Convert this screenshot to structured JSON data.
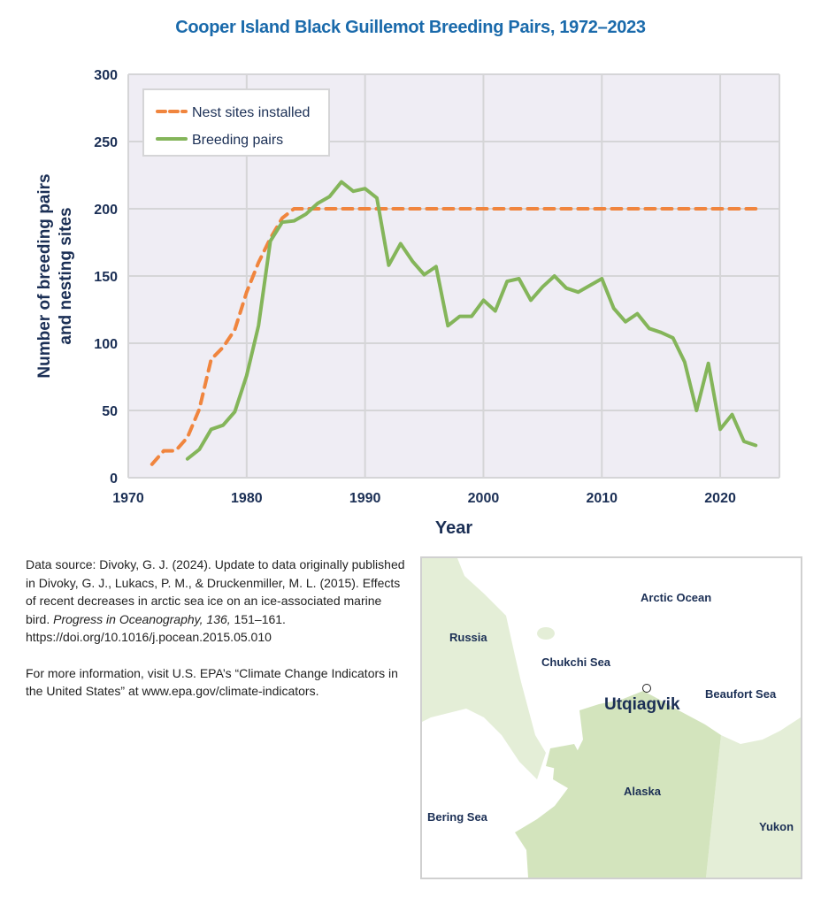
{
  "chart_data": {
    "type": "line",
    "title": "Cooper Island Black Guillemot Breeding Pairs, 1972–2023",
    "xlabel": "Year",
    "ylabel": "Number of breeding pairs and nesting sites",
    "ylabel_lines": [
      "Number of breeding pairs",
      "and nesting sites"
    ],
    "xlim": [
      1970,
      2025
    ],
    "ylim": [
      0,
      300
    ],
    "xticks": [
      1970,
      1980,
      1990,
      2000,
      2010,
      2020
    ],
    "yticks": [
      0,
      50,
      100,
      150,
      200,
      250,
      300
    ],
    "grid": true,
    "legend_position": "top-left",
    "series": [
      {
        "name": "Nest sites installed",
        "style": "dashed",
        "color": "#f0853e",
        "x": [
          1972,
          1973,
          1974,
          1975,
          1976,
          1977,
          1978,
          1979,
          1980,
          1981,
          1982,
          1983,
          1984,
          1985,
          1986,
          1987,
          1988,
          1989,
          1990,
          1991,
          1992,
          1993,
          1994,
          1995,
          1996,
          1997,
          1998,
          1999,
          2000,
          2001,
          2002,
          2003,
          2004,
          2005,
          2006,
          2007,
          2008,
          2009,
          2010,
          2011,
          2012,
          2013,
          2014,
          2015,
          2016,
          2017,
          2018,
          2019,
          2020,
          2021,
          2022,
          2023
        ],
        "values": [
          10,
          20,
          20,
          30,
          51,
          88,
          97,
          110,
          138,
          160,
          178,
          193,
          200,
          200,
          200,
          200,
          200,
          200,
          200,
          200,
          200,
          200,
          200,
          200,
          200,
          200,
          200,
          200,
          200,
          200,
          200,
          200,
          200,
          200,
          200,
          200,
          200,
          200,
          200,
          200,
          200,
          200,
          200,
          200,
          200,
          200,
          200,
          200,
          200,
          200,
          200,
          200
        ]
      },
      {
        "name": "Breeding pairs",
        "style": "solid",
        "color": "#84b55a",
        "x": [
          1975,
          1976,
          1977,
          1978,
          1979,
          1980,
          1981,
          1982,
          1983,
          1984,
          1985,
          1986,
          1987,
          1988,
          1989,
          1990,
          1991,
          1992,
          1993,
          1994,
          1995,
          1996,
          1997,
          1998,
          1999,
          2000,
          2001,
          2002,
          2003,
          2004,
          2005,
          2006,
          2007,
          2008,
          2009,
          2010,
          2011,
          2012,
          2013,
          2014,
          2015,
          2016,
          2017,
          2018,
          2019,
          2020,
          2021,
          2022,
          2023
        ],
        "values": [
          14,
          21,
          36,
          39,
          49,
          76,
          113,
          176,
          190,
          191,
          196,
          204,
          209,
          220,
          213,
          215,
          208,
          158,
          174,
          161,
          151,
          157,
          113,
          120,
          120,
          132,
          124,
          146,
          148,
          132,
          142,
          150,
          141,
          138,
          143,
          148,
          126,
          116,
          122,
          111,
          108,
          104,
          86,
          50,
          85,
          36,
          47,
          27,
          24
        ]
      }
    ]
  },
  "colors": {
    "title": "#1a6aab",
    "axis_text": "#1b2f55",
    "plot_bg": "#efedf4",
    "grid": "#d5d5d7",
    "nest_sites": "#f0853e",
    "breeding_pairs": "#84b55a",
    "land_alaska": "#d3e4bd",
    "land_other": "#e4eed7"
  },
  "source": {
    "line1": "Data source: Divoky, G. J. (2024). Update to data originally published in Divoky, G. J., Lukacs, P. M., & Druckenmiller, M. L. (2015). Effects of recent decreases in arctic sea ice on an ice-associated marine bird. ",
    "journal": "Progress in Oceanography, 136,",
    "line1_end": " 151–161. https://doi.org/10.1016/j.pocean.2015.05.010",
    "line2": "For more information, visit U.S. EPA’s “Climate Change Indicators in the United States” at www.epa.gov/climate-indicators."
  },
  "map": {
    "labels": {
      "arctic_ocean": "Arctic Ocean",
      "russia": "Russia",
      "chukchi_sea": "Chukchi Sea",
      "beaufort_sea": "Beaufort Sea",
      "city": "Utqiagvik",
      "alaska": "Alaska",
      "bering_sea": "Bering Sea",
      "yukon": "Yukon"
    }
  }
}
